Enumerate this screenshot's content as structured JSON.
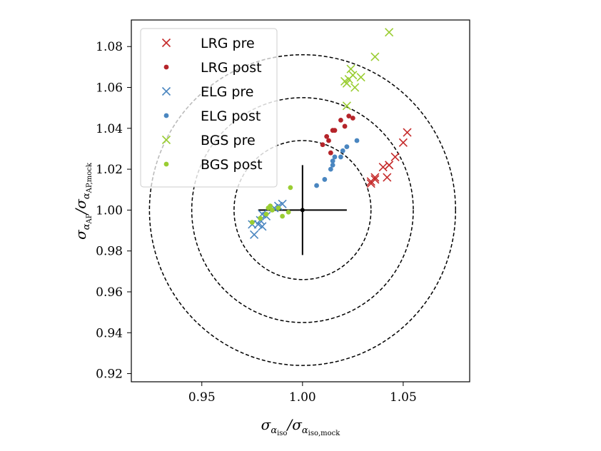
{
  "chart_data": {
    "type": "scatter",
    "xlabel": {
      "base": "σ",
      "sub": "α",
      "subsub": "iso",
      "mid": "/σ",
      "sub2": "α",
      "subsub2": "iso,mock"
    },
    "ylabel": {
      "base": "σ",
      "sub": "α",
      "subsub": "AP",
      "mid": "/σ",
      "sub2": "α",
      "subsub2": "AP,mock"
    },
    "xlim": [
      0.915,
      1.083
    ],
    "ylim": [
      0.916,
      1.093
    ],
    "xticks": [
      0.95,
      1.0,
      1.05
    ],
    "xtick_labels": [
      "0.95",
      "1.00",
      "1.05"
    ],
    "yticks": [
      0.92,
      0.94,
      0.96,
      0.98,
      1.0,
      1.02,
      1.04,
      1.06,
      1.08
    ],
    "ytick_labels": [
      "0.92",
      "0.94",
      "0.96",
      "0.98",
      "1.00",
      "1.02",
      "1.04",
      "1.06",
      "1.08"
    ],
    "circles": [
      {
        "center": [
          1.0,
          1.0
        ],
        "radius": 0.034,
        "color": "#000000",
        "style": "dashed"
      },
      {
        "center": [
          1.0,
          1.0
        ],
        "radius": 0.055,
        "color": "#000000",
        "style": "dashed"
      },
      {
        "center": [
          1.0,
          1.0
        ],
        "radius": 0.076,
        "color": "#000000",
        "style": "dashed"
      },
      {
        "center": [
          1.0,
          1.0
        ],
        "radius": 0.076,
        "color": "#bbbbbb",
        "style": "dashed",
        "note": "visible over legend"
      }
    ],
    "reference_cross": {
      "center": [
        1.0,
        1.0
      ],
      "x_half_width": 0.022,
      "y_half_height": 0.022,
      "color": "#000000"
    },
    "legend_position": "top-left",
    "series": [
      {
        "name": "LRG pre",
        "marker": "x",
        "color": "#c52a2a",
        "points": [
          [
            1.034,
            1.014
          ],
          [
            1.036,
            1.016
          ],
          [
            1.04,
            1.021
          ],
          [
            1.043,
            1.022
          ],
          [
            1.046,
            1.026
          ],
          [
            1.05,
            1.033
          ],
          [
            1.052,
            1.038
          ],
          [
            1.034,
            1.013
          ],
          [
            1.042,
            1.016
          ],
          [
            1.036,
            1.015
          ]
        ]
      },
      {
        "name": "LRG post",
        "marker": "o",
        "color": "#b5242a",
        "points": [
          [
            1.01,
            1.032
          ],
          [
            1.012,
            1.036
          ],
          [
            1.013,
            1.034
          ],
          [
            1.015,
            1.039
          ],
          [
            1.016,
            1.039
          ],
          [
            1.019,
            1.044
          ],
          [
            1.021,
            1.041
          ],
          [
            1.023,
            1.046
          ],
          [
            1.025,
            1.045
          ],
          [
            1.014,
            1.028
          ]
        ]
      },
      {
        "name": "ELG pre",
        "marker": "x",
        "color": "#4a86c0",
        "points": [
          [
            0.975,
            0.993
          ],
          [
            0.976,
            0.988
          ],
          [
            0.978,
            0.993
          ],
          [
            0.98,
            0.992
          ],
          [
            0.98,
            0.998
          ],
          [
            0.982,
            0.997
          ],
          [
            0.986,
            1.001
          ],
          [
            0.988,
            1.002
          ],
          [
            0.99,
            1.003
          ],
          [
            0.979,
            0.995
          ]
        ]
      },
      {
        "name": "ELG post",
        "marker": "o",
        "color": "#4a86c0",
        "points": [
          [
            1.007,
            1.012
          ],
          [
            1.011,
            1.015
          ],
          [
            1.014,
            1.02
          ],
          [
            1.015,
            1.022
          ],
          [
            1.016,
            1.026
          ],
          [
            1.019,
            1.026
          ],
          [
            1.02,
            1.029
          ],
          [
            1.022,
            1.031
          ],
          [
            1.027,
            1.034
          ],
          [
            1.015,
            1.024
          ]
        ]
      },
      {
        "name": "BGS pre",
        "marker": "x",
        "color": "#9acd32",
        "points": [
          [
            1.021,
            1.063
          ],
          [
            1.022,
            1.051
          ],
          [
            1.023,
            1.064
          ],
          [
            1.024,
            1.069
          ],
          [
            1.025,
            1.066
          ],
          [
            1.026,
            1.06
          ],
          [
            1.029,
            1.065
          ],
          [
            1.036,
            1.075
          ],
          [
            1.043,
            1.087
          ],
          [
            1.022,
            1.062
          ]
        ]
      },
      {
        "name": "BGS post",
        "marker": "o",
        "color": "#9acd32",
        "points": [
          [
            0.975,
            0.994
          ],
          [
            0.979,
            0.996
          ],
          [
            0.982,
            0.998
          ],
          [
            0.983,
            1.001
          ],
          [
            0.985,
            1.0
          ],
          [
            0.988,
            1.001
          ],
          [
            0.99,
            0.997
          ],
          [
            0.993,
            0.999
          ],
          [
            0.994,
            1.011
          ],
          [
            0.984,
            1.002
          ]
        ]
      }
    ]
  }
}
